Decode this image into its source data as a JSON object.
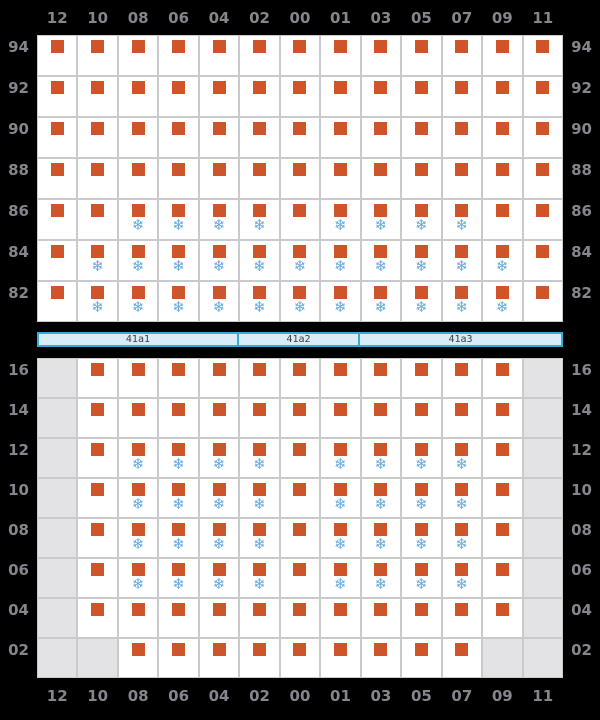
{
  "columns": [
    "12",
    "10",
    "08",
    "06",
    "04",
    "02",
    "00",
    "01",
    "03",
    "05",
    "07",
    "09",
    "11"
  ],
  "cell_states": {
    "C": "occupied-slot",
    "R": "occupied-reefer-slot",
    "X": "blocked-slot"
  },
  "icons": {
    "reefer": "snowflake-icon",
    "snowflake_glyph": "❄"
  },
  "colors": {
    "background": "#000000",
    "cell_fill": "#ffffff",
    "cell_border": "#c9c9ce",
    "blocked_fill": "#e3e3e6",
    "container_square": "#cf5429",
    "reefer_blue": "#64a9dc",
    "axis_label": "#85858d",
    "bar_fill": "#d9edf9",
    "bar_border": "#36a9e1",
    "bar_text": "#3c3c3c"
  },
  "top_grid": {
    "name": "above-deck",
    "rows": [
      {
        "label": "94",
        "cells": [
          "C",
          "C",
          "C",
          "C",
          "C",
          "C",
          "C",
          "C",
          "C",
          "C",
          "C",
          "C",
          "C"
        ]
      },
      {
        "label": "92",
        "cells": [
          "C",
          "C",
          "C",
          "C",
          "C",
          "C",
          "C",
          "C",
          "C",
          "C",
          "C",
          "C",
          "C"
        ]
      },
      {
        "label": "90",
        "cells": [
          "C",
          "C",
          "C",
          "C",
          "C",
          "C",
          "C",
          "C",
          "C",
          "C",
          "C",
          "C",
          "C"
        ]
      },
      {
        "label": "88",
        "cells": [
          "C",
          "C",
          "C",
          "C",
          "C",
          "C",
          "C",
          "C",
          "C",
          "C",
          "C",
          "C",
          "C"
        ]
      },
      {
        "label": "86",
        "cells": [
          "C",
          "C",
          "R",
          "R",
          "R",
          "R",
          "C",
          "R",
          "R",
          "R",
          "R",
          "C",
          "C"
        ]
      },
      {
        "label": "84",
        "cells": [
          "C",
          "R",
          "R",
          "R",
          "R",
          "R",
          "R",
          "R",
          "R",
          "R",
          "R",
          "R",
          "C"
        ]
      },
      {
        "label": "82",
        "cells": [
          "C",
          "R",
          "R",
          "R",
          "R",
          "R",
          "R",
          "R",
          "R",
          "R",
          "R",
          "R",
          "C"
        ]
      }
    ]
  },
  "bay_bar": {
    "segments": [
      {
        "label": "41a1",
        "width_pct": 38.3
      },
      {
        "label": "41a2",
        "width_pct": 23.2
      },
      {
        "label": "41a3",
        "width_pct": 38.5
      }
    ]
  },
  "bottom_grid": {
    "name": "below-deck",
    "rows": [
      {
        "label": "16",
        "cells": [
          "X",
          "C",
          "C",
          "C",
          "C",
          "C",
          "C",
          "C",
          "C",
          "C",
          "C",
          "C",
          "X"
        ]
      },
      {
        "label": "14",
        "cells": [
          "X",
          "C",
          "C",
          "C",
          "C",
          "C",
          "C",
          "C",
          "C",
          "C",
          "C",
          "C",
          "X"
        ]
      },
      {
        "label": "12",
        "cells": [
          "X",
          "C",
          "R",
          "R",
          "R",
          "R",
          "C",
          "R",
          "R",
          "R",
          "R",
          "C",
          "X"
        ]
      },
      {
        "label": "10",
        "cells": [
          "X",
          "C",
          "R",
          "R",
          "R",
          "R",
          "C",
          "R",
          "R",
          "R",
          "R",
          "C",
          "X"
        ]
      },
      {
        "label": "08",
        "cells": [
          "X",
          "C",
          "R",
          "R",
          "R",
          "R",
          "C",
          "R",
          "R",
          "R",
          "R",
          "C",
          "X"
        ]
      },
      {
        "label": "06",
        "cells": [
          "X",
          "C",
          "R",
          "R",
          "R",
          "R",
          "C",
          "R",
          "R",
          "R",
          "R",
          "C",
          "X"
        ]
      },
      {
        "label": "04",
        "cells": [
          "X",
          "C",
          "C",
          "C",
          "C",
          "C",
          "C",
          "C",
          "C",
          "C",
          "C",
          "C",
          "X"
        ]
      },
      {
        "label": "02",
        "cells": [
          "X",
          "X",
          "C",
          "C",
          "C",
          "C",
          "C",
          "C",
          "C",
          "C",
          "C",
          "X",
          "X"
        ]
      }
    ]
  }
}
